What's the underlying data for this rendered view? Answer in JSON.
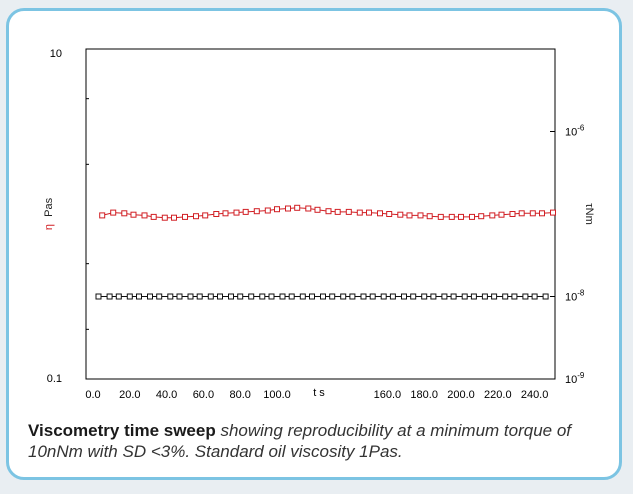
{
  "caption": {
    "lead": "Viscometry time sweep",
    "rest": "showing reproducibility at a minimum torque of 10nNm with SD <3%. Standard oil viscosity 1Pas."
  },
  "colors": {
    "viscosity": "#d11f24",
    "torque": "#111111",
    "card_border": "#7cc4e3"
  },
  "chart_data": {
    "type": "scatter",
    "x": {
      "label": "t s",
      "range": [
        0,
        250
      ],
      "ticks": [
        {
          "v": 0,
          "label": "0.0"
        },
        {
          "v": 20,
          "label": "20.0"
        },
        {
          "v": 40,
          "label": "40.0"
        },
        {
          "v": 60,
          "label": "60.0"
        },
        {
          "v": 80,
          "label": "80.0"
        },
        {
          "v": 100,
          "label": "100.0"
        },
        {
          "v": 160,
          "label": "160.0"
        },
        {
          "v": 180,
          "label": "180.0"
        },
        {
          "v": 200,
          "label": "200.0"
        },
        {
          "v": 220,
          "label": "220.0"
        },
        {
          "v": 240,
          "label": "240.0"
        }
      ]
    },
    "y_left": {
      "label_symbol": "η",
      "label_unit": "Pas",
      "scale": "log",
      "range": [
        0.1,
        10
      ],
      "ticks": [
        {
          "v": 0.1,
          "label": "0.1"
        },
        {
          "v": 10,
          "label": "10"
        }
      ]
    },
    "y_right": {
      "label": "τNm",
      "scale": "log",
      "range": [
        1e-09,
        1e-05
      ],
      "ticks": [
        {
          "v": 1e-09,
          "base": "10",
          "exp": "-9"
        },
        {
          "v": 1e-08,
          "base": "10",
          "exp": "-8"
        },
        {
          "v": 1e-06,
          "base": "10",
          "exp": "-6"
        }
      ]
    },
    "grid": false,
    "series": [
      {
        "key": "viscosity",
        "axis": "left",
        "marker": "square",
        "connect": true,
        "x": [
          5,
          11,
          17,
          22,
          28,
          33,
          39,
          44,
          50,
          56,
          61,
          67,
          72,
          78,
          83,
          89,
          95,
          100,
          106,
          111,
          117,
          122,
          128,
          133,
          139,
          145,
          150,
          156,
          161,
          167,
          172,
          178,
          183,
          189,
          195,
          200,
          206,
          211,
          217,
          222,
          228,
          233,
          239,
          244,
          250
        ],
        "y": [
          0.98,
          1.02,
          1.01,
          0.99,
          0.98,
          0.96,
          0.95,
          0.95,
          0.96,
          0.97,
          0.98,
          1.0,
          1.01,
          1.02,
          1.03,
          1.04,
          1.05,
          1.07,
          1.08,
          1.09,
          1.08,
          1.06,
          1.04,
          1.03,
          1.03,
          1.02,
          1.02,
          1.01,
          1.0,
          0.99,
          0.98,
          0.98,
          0.97,
          0.96,
          0.96,
          0.96,
          0.96,
          0.97,
          0.98,
          0.99,
          1.0,
          1.01,
          1.01,
          1.01,
          1.02
        ]
      },
      {
        "key": "torque",
        "axis": "right",
        "marker": "square",
        "connect": true,
        "x": [
          3,
          9,
          14,
          20,
          25,
          31,
          36,
          42,
          47,
          53,
          58,
          64,
          69,
          75,
          80,
          86,
          92,
          97,
          103,
          108,
          114,
          119,
          125,
          130,
          136,
          141,
          147,
          152,
          158,
          163,
          169,
          174,
          180,
          185,
          191,
          196,
          202,
          207,
          213,
          218,
          224,
          229,
          235,
          240,
          246
        ],
        "y": [
          1e-08,
          1e-08,
          1e-08,
          1e-08,
          1e-08,
          1e-08,
          1e-08,
          1e-08,
          1e-08,
          1e-08,
          1e-08,
          1e-08,
          1e-08,
          1e-08,
          1e-08,
          1e-08,
          1e-08,
          1e-08,
          1e-08,
          1e-08,
          1e-08,
          1e-08,
          1e-08,
          1e-08,
          1e-08,
          1e-08,
          1e-08,
          1e-08,
          1e-08,
          1e-08,
          1e-08,
          1e-08,
          1e-08,
          1e-08,
          1e-08,
          1e-08,
          1e-08,
          1e-08,
          1e-08,
          1e-08,
          1e-08,
          1e-08,
          1e-08,
          1e-08,
          1e-08
        ]
      }
    ]
  }
}
